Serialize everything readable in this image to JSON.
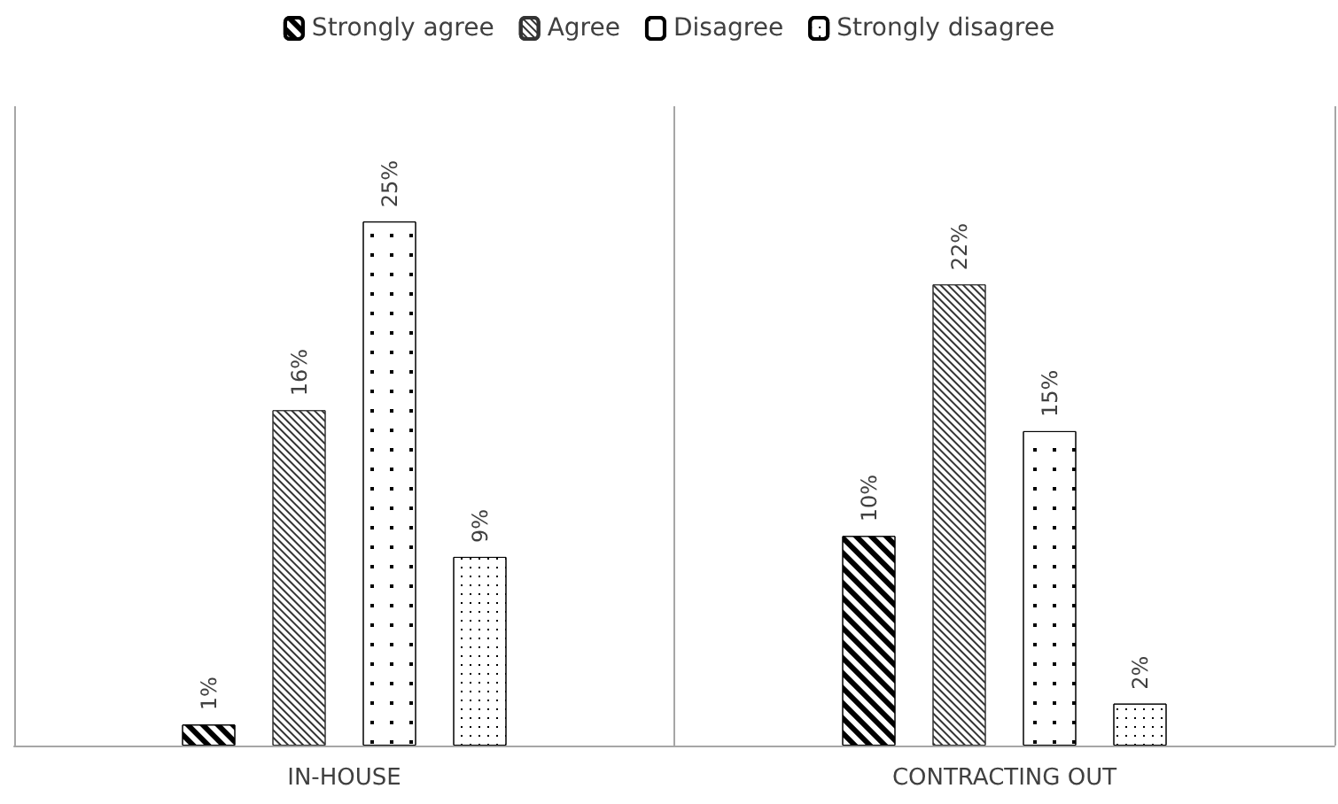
{
  "chart_data": {
    "type": "bar",
    "categories": [
      "IN-HOUSE",
      "CONTRACTING OUT"
    ],
    "series": [
      {
        "name": "Strongly agree",
        "color": "#000000",
        "values": [
          1,
          10
        ],
        "value_labels": [
          "1%",
          "10%"
        ]
      },
      {
        "name": "Agree",
        "color": "#333333",
        "values": [
          16,
          22
        ],
        "value_labels": [
          "16%",
          "22%"
        ]
      },
      {
        "name": "Disagree",
        "color": "#000000",
        "values": [
          25,
          15
        ],
        "value_labels": [
          "25%",
          "15%"
        ]
      },
      {
        "name": "Strongly disagree",
        "color": "#000000",
        "values": [
          9,
          2
        ],
        "value_labels": [
          "9%",
          "2%"
        ]
      }
    ],
    "tick_labels": "x",
    "legend": "top",
    "grid": "x"
  }
}
